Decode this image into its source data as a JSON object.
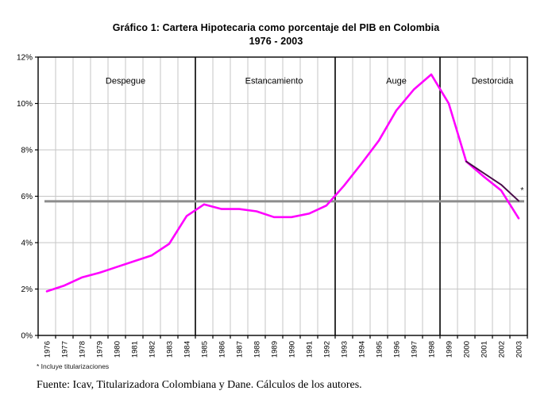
{
  "title": {
    "line1": "Gráfico 1: Cartera Hipotecaria como porcentaje del PIB en Colombia",
    "line2": "1976 - 2003"
  },
  "footnote": "* Incluye titularizaciones",
  "source": "Fuente: Icav, Titularizadora Colombiana y Dane. Cálculos de los autores.",
  "chart_data": {
    "type": "line",
    "title": "Gráfico 1: Cartera Hipotecaria como porcentaje del PIB en Colombia 1976 - 2003",
    "xlabel": "",
    "ylabel": "",
    "ylim": [
      0,
      12
    ],
    "y_tick_step": 2,
    "y_tick_suffix": "%",
    "grid": true,
    "categories": [
      1976,
      1977,
      1978,
      1979,
      1980,
      1981,
      1982,
      1983,
      1984,
      1985,
      1986,
      1987,
      1988,
      1989,
      1990,
      1991,
      1992,
      1993,
      1994,
      1995,
      1996,
      1997,
      1998,
      1999,
      2000,
      2001,
      2002,
      2003
    ],
    "series": [
      {
        "name": "Cartera hipotecaria como porcentaje del PIB",
        "color": "#ff00ff",
        "width": 2.6,
        "values": [
          1.9,
          2.15,
          2.5,
          2.7,
          2.95,
          3.2,
          3.45,
          3.95,
          5.15,
          5.65,
          5.45,
          5.45,
          5.35,
          5.1,
          5.1,
          5.25,
          5.6,
          6.45,
          7.4,
          8.4,
          9.7,
          10.6,
          11.25,
          10.0,
          7.5,
          6.85,
          6.25,
          5.05
        ]
      },
      {
        "name": "Cartera incluyendo titularizaciones",
        "color": "#4a0d4a",
        "width": 2.0,
        "values": [
          null,
          null,
          null,
          null,
          null,
          null,
          null,
          null,
          null,
          null,
          null,
          null,
          null,
          null,
          null,
          null,
          null,
          null,
          null,
          null,
          null,
          null,
          null,
          null,
          7.5,
          7.0,
          6.5,
          5.8
        ]
      }
    ],
    "reference_line": {
      "value": 5.78,
      "color": "#8c8c8c",
      "width": 3
    },
    "region_separators": [
      {
        "boundary_index": 9,
        "between": "1984/1985"
      },
      {
        "boundary_index": 17,
        "between": "1992/1993"
      },
      {
        "boundary_index": 23,
        "between": "1998/1999"
      }
    ],
    "regions": [
      {
        "label": "Despegue",
        "center_index": 4.5,
        "label_pct": 10.85
      },
      {
        "label": "Estancamiento",
        "center_index": 13.0,
        "label_pct": 10.85
      },
      {
        "label": "Auge",
        "center_index": 20.0,
        "label_pct": 10.85
      },
      {
        "label": "Destorcida",
        "center_index": 25.5,
        "label_pct": 10.85
      }
    ],
    "annotation": {
      "text": "*",
      "x_index": 27.7,
      "y_pct": 6.35
    },
    "colors": {
      "gridline": "#c6c6c6",
      "axis": "#000000",
      "separator": "#000000",
      "label": "#000000"
    }
  }
}
